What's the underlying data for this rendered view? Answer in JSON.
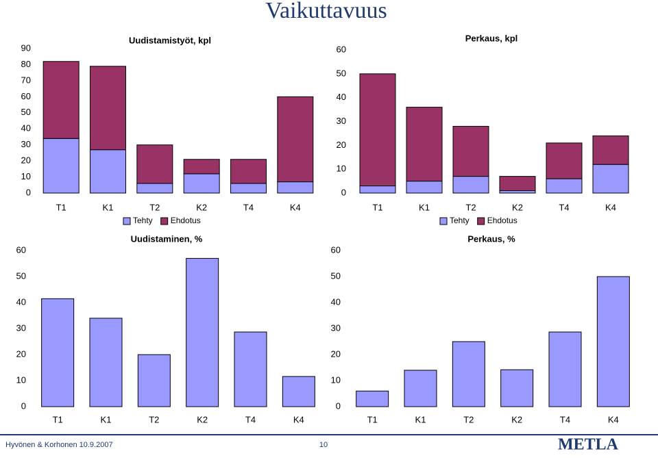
{
  "title": "Vaikuttavuus",
  "footer": "Hyvönen & Korhonen 10.9.2007",
  "page_number": "10",
  "logo": "METLA",
  "chart_data": [
    {
      "type": "bar",
      "stacked": true,
      "title": "Uudistamistyöt, kpl",
      "categories": [
        "T1",
        "K1",
        "T2",
        "K2",
        "T4",
        "K4"
      ],
      "series": [
        {
          "name": "Tehty",
          "color": "#9999ff",
          "values": [
            34,
            27,
            6,
            12,
            6,
            7
          ]
        },
        {
          "name": "Ehdotus",
          "color": "#993366",
          "values": [
            48,
            52,
            24,
            9,
            15,
            53
          ]
        }
      ],
      "ylim": [
        0,
        90
      ],
      "yticks": [
        0,
        10,
        20,
        30,
        40,
        50,
        60,
        70,
        80,
        90
      ],
      "grid": false,
      "legend": "bottom"
    },
    {
      "type": "bar",
      "stacked": true,
      "title": "Perkaus, kpl",
      "categories": [
        "T1",
        "K1",
        "T2",
        "K2",
        "T4",
        "K4"
      ],
      "series": [
        {
          "name": "Tehty",
          "color": "#9999ff",
          "values": [
            3,
            5,
            7,
            1,
            6,
            12
          ]
        },
        {
          "name": "Ehdotus",
          "color": "#993366",
          "values": [
            47,
            31,
            21,
            6,
            15,
            12
          ]
        }
      ],
      "ylim": [
        0,
        60
      ],
      "yticks": [
        0,
        10,
        20,
        30,
        40,
        50,
        60
      ],
      "grid": false,
      "legend": "bottom"
    },
    {
      "type": "bar",
      "title": "Uudistaminen, %",
      "categories": [
        "T1",
        "K1",
        "T2",
        "K2",
        "T4",
        "K4"
      ],
      "values": [
        41.5,
        34,
        20,
        57,
        28.7,
        11.6
      ],
      "color": "#9999ff",
      "ylim": [
        0,
        60
      ],
      "yticks": [
        0,
        10,
        20,
        30,
        40,
        50,
        60
      ],
      "grid": false
    },
    {
      "type": "bar",
      "title": "Perkaus, %",
      "categories": [
        "T1",
        "K1",
        "T2",
        "K2",
        "T4",
        "K4"
      ],
      "values": [
        6,
        14,
        25,
        14.2,
        28.7,
        50
      ],
      "color": "#9999ff",
      "ylim": [
        0,
        60
      ],
      "yticks": [
        0,
        10,
        20,
        30,
        40,
        50,
        60
      ],
      "grid": false
    }
  ]
}
